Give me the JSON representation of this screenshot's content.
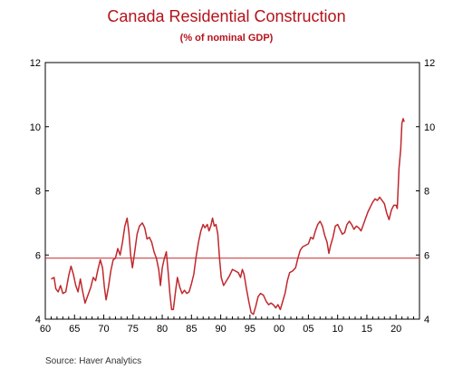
{
  "chart_data": {
    "type": "line",
    "title": "Canada Residential Construction",
    "subtitle": "(% of nominal GDP)",
    "source": "Source:  Haver Analytics",
    "xlim": [
      1960,
      2024
    ],
    "ylim": [
      4,
      12
    ],
    "x_ticks": [
      1960,
      1965,
      1970,
      1975,
      1980,
      1985,
      1990,
      1995,
      2000,
      2005,
      2010,
      2015,
      2020
    ],
    "x_tick_labels": [
      "60",
      "65",
      "70",
      "75",
      "80",
      "85",
      "90",
      "95",
      "00",
      "05",
      "10",
      "15",
      "20"
    ],
    "y_ticks": [
      4,
      6,
      8,
      10,
      12
    ],
    "y_tick_labels": [
      "4",
      "6",
      "8",
      "10",
      "12"
    ],
    "grid": false,
    "series": [
      {
        "color": "#c0282d",
        "points": [
          [
            1961.0,
            5.25
          ],
          [
            1961.5,
            5.3
          ],
          [
            1961.8,
            4.95
          ],
          [
            1962.2,
            4.85
          ],
          [
            1962.6,
            5.05
          ],
          [
            1963.0,
            4.8
          ],
          [
            1963.5,
            4.85
          ],
          [
            1964.0,
            5.35
          ],
          [
            1964.4,
            5.65
          ],
          [
            1964.8,
            5.4
          ],
          [
            1965.2,
            5.05
          ],
          [
            1965.6,
            4.85
          ],
          [
            1966.0,
            5.25
          ],
          [
            1966.4,
            4.85
          ],
          [
            1966.8,
            4.5
          ],
          [
            1967.3,
            4.75
          ],
          [
            1967.8,
            5.0
          ],
          [
            1968.2,
            5.3
          ],
          [
            1968.6,
            5.2
          ],
          [
            1969.0,
            5.55
          ],
          [
            1969.4,
            5.85
          ],
          [
            1969.8,
            5.6
          ],
          [
            1970.1,
            5.0
          ],
          [
            1970.4,
            4.6
          ],
          [
            1970.8,
            5.0
          ],
          [
            1971.2,
            5.5
          ],
          [
            1971.6,
            5.85
          ],
          [
            1972.0,
            5.9
          ],
          [
            1972.4,
            6.2
          ],
          [
            1972.8,
            6.0
          ],
          [
            1973.2,
            6.4
          ],
          [
            1973.6,
            6.9
          ],
          [
            1974.0,
            7.15
          ],
          [
            1974.3,
            6.7
          ],
          [
            1974.6,
            6.0
          ],
          [
            1974.9,
            5.6
          ],
          [
            1975.3,
            6.1
          ],
          [
            1975.7,
            6.65
          ],
          [
            1976.1,
            6.9
          ],
          [
            1976.6,
            7.0
          ],
          [
            1977.0,
            6.85
          ],
          [
            1977.4,
            6.5
          ],
          [
            1977.8,
            6.55
          ],
          [
            1978.2,
            6.4
          ],
          [
            1978.6,
            6.1
          ],
          [
            1979.0,
            5.9
          ],
          [
            1979.4,
            5.55
          ],
          [
            1979.7,
            5.05
          ],
          [
            1980.0,
            5.6
          ],
          [
            1980.3,
            5.85
          ],
          [
            1980.7,
            6.1
          ],
          [
            1981.0,
            5.5
          ],
          [
            1981.3,
            4.8
          ],
          [
            1981.6,
            4.3
          ],
          [
            1981.9,
            4.3
          ],
          [
            1982.3,
            4.9
          ],
          [
            1982.6,
            5.3
          ],
          [
            1983.0,
            5.0
          ],
          [
            1983.4,
            4.8
          ],
          [
            1983.8,
            4.9
          ],
          [
            1984.2,
            4.8
          ],
          [
            1984.6,
            4.85
          ],
          [
            1985.0,
            5.1
          ],
          [
            1985.4,
            5.4
          ],
          [
            1985.8,
            5.95
          ],
          [
            1986.2,
            6.4
          ],
          [
            1986.6,
            6.75
          ],
          [
            1987.0,
            6.95
          ],
          [
            1987.3,
            6.85
          ],
          [
            1987.7,
            6.95
          ],
          [
            1988.0,
            6.75
          ],
          [
            1988.3,
            6.9
          ],
          [
            1988.6,
            7.15
          ],
          [
            1988.9,
            6.9
          ],
          [
            1989.2,
            6.95
          ],
          [
            1989.5,
            6.65
          ],
          [
            1989.8,
            5.9
          ],
          [
            1990.1,
            5.3
          ],
          [
            1990.5,
            5.05
          ],
          [
            1991.0,
            5.2
          ],
          [
            1991.5,
            5.35
          ],
          [
            1992.0,
            5.55
          ],
          [
            1992.5,
            5.5
          ],
          [
            1993.0,
            5.45
          ],
          [
            1993.4,
            5.3
          ],
          [
            1993.7,
            5.55
          ],
          [
            1994.0,
            5.4
          ],
          [
            1994.4,
            4.95
          ],
          [
            1994.8,
            4.55
          ],
          [
            1995.2,
            4.2
          ],
          [
            1995.6,
            4.15
          ],
          [
            1996.0,
            4.4
          ],
          [
            1996.4,
            4.7
          ],
          [
            1996.8,
            4.8
          ],
          [
            1997.3,
            4.75
          ],
          [
            1997.8,
            4.55
          ],
          [
            1998.2,
            4.45
          ],
          [
            1998.6,
            4.5
          ],
          [
            1999.0,
            4.45
          ],
          [
            1999.4,
            4.35
          ],
          [
            1999.8,
            4.45
          ],
          [
            2000.2,
            4.3
          ],
          [
            2000.6,
            4.55
          ],
          [
            2001.0,
            4.8
          ],
          [
            2001.4,
            5.2
          ],
          [
            2001.8,
            5.45
          ],
          [
            2002.3,
            5.5
          ],
          [
            2002.8,
            5.6
          ],
          [
            2003.2,
            5.9
          ],
          [
            2003.6,
            6.15
          ],
          [
            2004.0,
            6.25
          ],
          [
            2004.5,
            6.3
          ],
          [
            2005.0,
            6.35
          ],
          [
            2005.4,
            6.55
          ],
          [
            2005.8,
            6.5
          ],
          [
            2006.2,
            6.75
          ],
          [
            2006.6,
            6.95
          ],
          [
            2007.0,
            7.05
          ],
          [
            2007.4,
            6.9
          ],
          [
            2007.8,
            6.6
          ],
          [
            2008.2,
            6.4
          ],
          [
            2008.5,
            6.05
          ],
          [
            2008.8,
            6.3
          ],
          [
            2009.2,
            6.55
          ],
          [
            2009.6,
            6.9
          ],
          [
            2010.0,
            6.95
          ],
          [
            2010.4,
            6.8
          ],
          [
            2010.8,
            6.65
          ],
          [
            2011.2,
            6.7
          ],
          [
            2011.6,
            6.95
          ],
          [
            2012.0,
            7.05
          ],
          [
            2012.4,
            6.95
          ],
          [
            2012.8,
            6.8
          ],
          [
            2013.2,
            6.9
          ],
          [
            2013.6,
            6.85
          ],
          [
            2014.0,
            6.75
          ],
          [
            2014.4,
            6.95
          ],
          [
            2014.8,
            7.15
          ],
          [
            2015.2,
            7.35
          ],
          [
            2015.6,
            7.5
          ],
          [
            2016.0,
            7.65
          ],
          [
            2016.4,
            7.75
          ],
          [
            2016.8,
            7.7
          ],
          [
            2017.2,
            7.8
          ],
          [
            2017.6,
            7.7
          ],
          [
            2018.0,
            7.6
          ],
          [
            2018.4,
            7.3
          ],
          [
            2018.8,
            7.1
          ],
          [
            2019.2,
            7.4
          ],
          [
            2019.6,
            7.55
          ],
          [
            2020.0,
            7.55
          ],
          [
            2020.2,
            7.45
          ],
          [
            2020.5,
            8.7
          ],
          [
            2020.8,
            9.3
          ],
          [
            2021.0,
            10.1
          ],
          [
            2021.2,
            10.25
          ],
          [
            2021.4,
            10.15
          ]
        ]
      }
    ],
    "reference_line": {
      "y": 5.9,
      "color": "#c0282d"
    }
  }
}
